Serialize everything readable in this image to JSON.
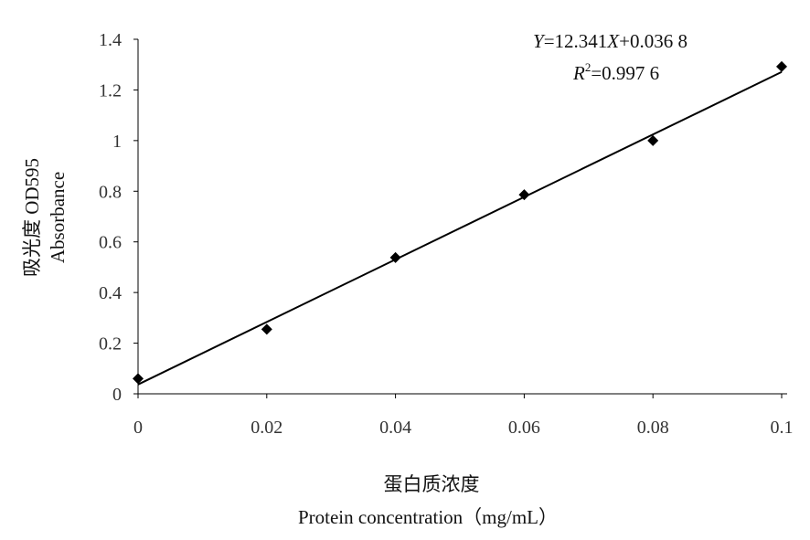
{
  "chart_data": {
    "type": "scatter",
    "x_ticks": [
      "0",
      "0.02",
      "0.04",
      "0.06",
      "0.08",
      "0.1"
    ],
    "y_ticks": [
      "0",
      "0.2",
      "0.4",
      "0.6",
      "0.8",
      "1",
      "1.2",
      "1.4"
    ],
    "xlim": [
      0,
      0.1
    ],
    "ylim": [
      0,
      1.4
    ],
    "xlabel_cn": "蛋白质浓度",
    "xlabel_en": "Protein concentration（mg/mL）",
    "ylabel_cn": "吸光度 OD595",
    "ylabel_en": "Absorbance",
    "series": [
      {
        "points": [
          [
            0,
            0.06
          ],
          [
            0.02,
            0.255
          ],
          [
            0.04,
            0.538
          ],
          [
            0.06,
            0.786
          ],
          [
            0.08,
            1.0
          ],
          [
            0.1,
            1.292
          ]
        ]
      }
    ],
    "trendline": {
      "slope": 12.341,
      "intercept": 0.0368
    },
    "equation": {
      "Y": "Y",
      "eq_rhs": "=12.341",
      "X": "X",
      "eq_tail": "+0.036 8",
      "R": "R",
      "R_sup": "2",
      "r2_rhs": "=0.997 6"
    },
    "marker": "diamond",
    "grid": false,
    "colors": {
      "marker": "#000000",
      "line": "#000000",
      "axis": "#000000"
    }
  }
}
